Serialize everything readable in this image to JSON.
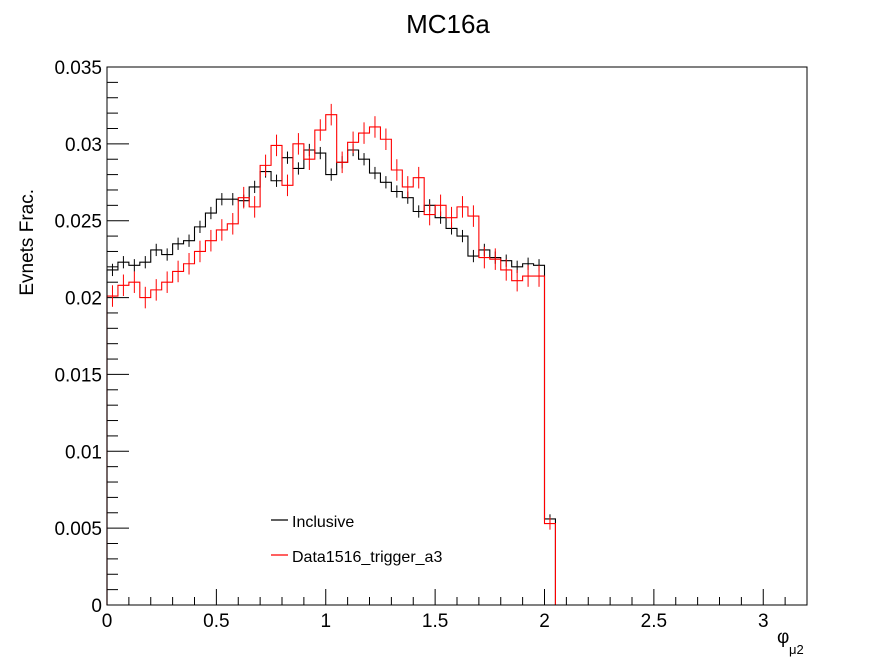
{
  "chart_data": {
    "type": "line",
    "title": "MC16a",
    "ylabel": "Evnets Frac.",
    "xlabel": "φ",
    "xlabel_sub": "μ2",
    "xlim": [
      0,
      3.2
    ],
    "ylim": [
      0,
      0.035
    ],
    "x_ticks": [
      0,
      0.5,
      1,
      1.5,
      2,
      2.5,
      3
    ],
    "x_tick_labels": [
      "0",
      "0.5",
      "1",
      "1.5",
      "2",
      "2.5",
      "3"
    ],
    "y_ticks": [
      0,
      0.005,
      0.01,
      0.015,
      0.02,
      0.025,
      0.03,
      0.035
    ],
    "y_tick_labels": [
      "0",
      "0.005",
      "0.01",
      "0.015",
      "0.02",
      "0.025",
      "0.03",
      "0.035"
    ],
    "grid": false,
    "legend_position": "bottom-left",
    "bin_width": 0.05,
    "series": [
      {
        "name": "Inclusive",
        "color": "#000000",
        "values": [
          0.0218,
          0.0223,
          0.0221,
          0.0223,
          0.0231,
          0.0228,
          0.0235,
          0.0237,
          0.0246,
          0.0255,
          0.0264,
          0.0264,
          0.0263,
          0.0272,
          0.0282,
          0.0276,
          0.0291,
          0.0284,
          0.0296,
          0.0294,
          0.028,
          0.0288,
          0.0296,
          0.029,
          0.0281,
          0.0275,
          0.0269,
          0.0265,
          0.0256,
          0.026,
          0.0252,
          0.0245,
          0.024,
          0.0227,
          0.0231,
          0.0226,
          0.0224,
          0.022,
          0.0222,
          0.0221,
          0.0056
        ],
        "errors": [
          0.0004,
          0.0004,
          0.0004,
          0.0004,
          0.0004,
          0.0004,
          0.0004,
          0.0004,
          0.0004,
          0.0004,
          0.0004,
          0.0004,
          0.0004,
          0.0004,
          0.0004,
          0.0004,
          0.0004,
          0.0004,
          0.0004,
          0.0004,
          0.0004,
          0.0004,
          0.0004,
          0.0004,
          0.0004,
          0.0004,
          0.0004,
          0.0004,
          0.0004,
          0.0004,
          0.0004,
          0.0004,
          0.0004,
          0.0004,
          0.0004,
          0.0004,
          0.0004,
          0.0004,
          0.0004,
          0.0004,
          0.0003
        ]
      },
      {
        "name": "Data1516_trigger_a3",
        "color": "#ff0000",
        "values": [
          0.0201,
          0.0208,
          0.021,
          0.02,
          0.0205,
          0.021,
          0.0217,
          0.0222,
          0.023,
          0.0237,
          0.0244,
          0.0248,
          0.0265,
          0.0259,
          0.0286,
          0.0299,
          0.0273,
          0.03,
          0.029,
          0.0309,
          0.0319,
          0.0288,
          0.0301,
          0.0307,
          0.0311,
          0.0303,
          0.0283,
          0.0272,
          0.0278,
          0.0254,
          0.026,
          0.0252,
          0.0259,
          0.0253,
          0.0226,
          0.0225,
          0.0218,
          0.0211,
          0.0214,
          0.0214,
          0.0053
        ],
        "errors": [
          0.0007,
          0.0007,
          0.0007,
          0.0007,
          0.0007,
          0.0007,
          0.0007,
          0.0007,
          0.0007,
          0.0007,
          0.0007,
          0.0007,
          0.0007,
          0.0007,
          0.0007,
          0.0007,
          0.0007,
          0.0007,
          0.0007,
          0.0007,
          0.0007,
          0.0007,
          0.0007,
          0.0007,
          0.0007,
          0.0007,
          0.0007,
          0.0007,
          0.0007,
          0.0007,
          0.0007,
          0.0007,
          0.0007,
          0.0007,
          0.0007,
          0.0007,
          0.0007,
          0.0007,
          0.0007,
          0.0007,
          0.0004
        ]
      }
    ]
  }
}
